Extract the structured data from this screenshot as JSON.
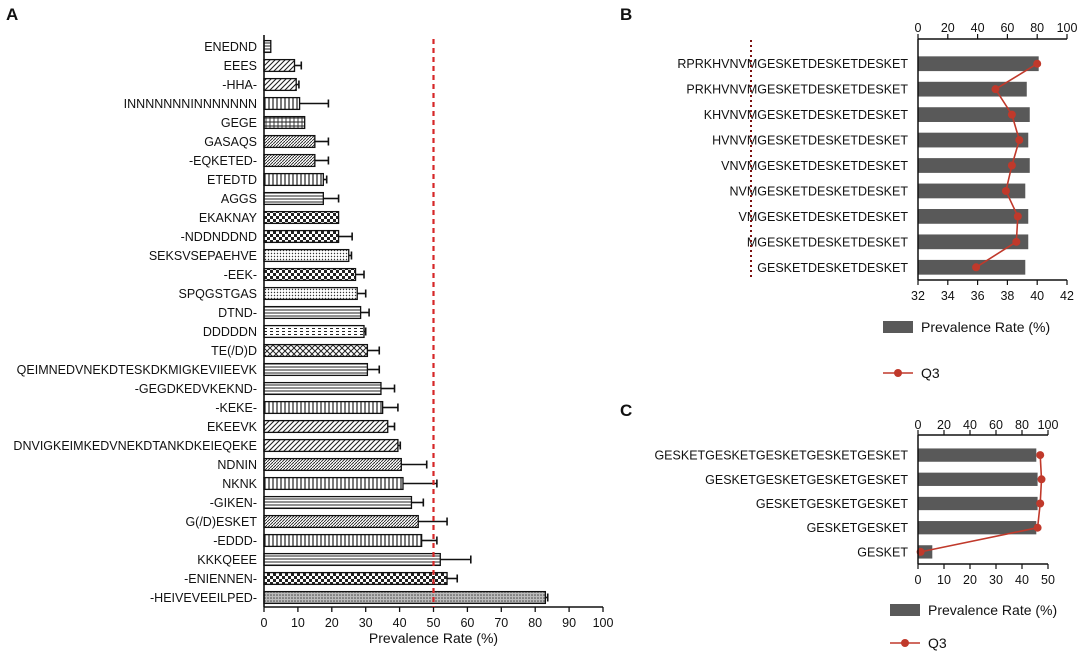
{
  "chart_data": [
    {
      "panel": "A",
      "type": "bar",
      "orientation": "horizontal",
      "xlabel": "Prevalence Rate (%)",
      "xlim": [
        0,
        100
      ],
      "xticks": [
        0,
        10,
        20,
        30,
        40,
        50,
        60,
        70,
        80,
        90,
        100
      ],
      "threshold": 50,
      "categories": [
        "ENEDND",
        "EEES",
        "-HHA-",
        "INNNNNNNINNNNNNN",
        "GEGE",
        "GASAQS",
        "-EQKETED-",
        "ETEDTD",
        "AGGS",
        "EKAKNAY",
        "-NDDNDDND",
        "SEKSVSEPAEHVE",
        "-EEK-",
        "SPQGSTGAS",
        "DTND-",
        "DDDDDN",
        "TE(/D)D",
        "QEIMNEDVNEKDTESKDKMIGKEVIIEEVK",
        "-GEGDKEDVKEKND-",
        "-KEKE-",
        "EKEEVK",
        "DNVIGKEIMKEDVNEKDTANKDKEIEQEKE",
        "NDNIN",
        "NKNK",
        "-GIKEN-",
        "G(/D)ESKET",
        "-EDDD-",
        "KKKQEEE",
        "-ENIENNEN-",
        "-HEIVEVEEILPED-"
      ],
      "values": [
        2,
        9,
        9.5,
        10.5,
        12,
        15,
        15,
        17.5,
        17.5,
        22,
        22,
        25,
        27,
        27.5,
        28.5,
        29.5,
        30.5,
        30.5,
        34.5,
        35,
        36.5,
        39.5,
        40.5,
        41,
        43.5,
        45.5,
        46.5,
        52,
        54,
        83
      ],
      "errors": [
        0,
        2,
        0.8,
        8.5,
        0,
        4,
        4,
        1,
        4.5,
        0,
        4,
        0.8,
        2.5,
        2.5,
        2.5,
        0.5,
        3.5,
        3.5,
        4,
        4.5,
        2,
        0.7,
        7.5,
        10,
        3.5,
        8.5,
        4.5,
        9,
        3,
        0.7
      ]
    },
    {
      "panel": "B",
      "type": "bar",
      "orientation": "horizontal",
      "categories": [
        "RPRKHVNVMGESKETDESKETDESKET",
        "PRKHVNVMGESKETDESKETDESKET",
        "KHVNVMGESKETDESKETDESKET",
        "HVNVMGESKETDESKETDESKET",
        "VNVMGESKETDESKETDESKET",
        "NVMGESKETDESKETDESKET",
        "VMGESKETDESKETDESKET",
        "MGESKETDESKETDESKET",
        "GESKETDESKETDESKET"
      ],
      "series": [
        {
          "name": "Prevalence Rate (%)",
          "axis": "top",
          "values": [
            81,
            73,
            75,
            74,
            75,
            72,
            74,
            74,
            72
          ]
        },
        {
          "name": "Q3",
          "axis": "bottom",
          "values": [
            40,
            37.2,
            38.3,
            38.8,
            38.3,
            37.9,
            38.7,
            38.6,
            35.9
          ]
        }
      ],
      "top_axis": {
        "range": [
          0,
          100
        ],
        "ticks": [
          0,
          20,
          40,
          60,
          80,
          100
        ]
      },
      "bottom_axis": {
        "range": [
          32,
          42
        ],
        "ticks": [
          32,
          34,
          36,
          38,
          40,
          42
        ]
      },
      "legend": [
        "Prevalence Rate (%)",
        "Q3"
      ]
    },
    {
      "panel": "C",
      "type": "bar",
      "orientation": "horizontal",
      "categories": [
        "GESKETGESKETGESKETGESKETGESKET",
        "GESKETGESKETGESKETGESKET",
        "GESKETGESKETGESKET",
        "GESKETGESKET",
        "GESKET"
      ],
      "series": [
        {
          "name": "Prevalence Rate (%)",
          "axis": "bottom",
          "values": [
            45.5,
            46,
            46,
            45.5,
            5.5
          ]
        },
        {
          "name": "Q3",
          "axis": "top",
          "values": [
            94,
            95,
            94,
            92,
            2
          ]
        }
      ],
      "top_axis": {
        "range": [
          0,
          100
        ],
        "ticks": [
          0,
          20,
          40,
          60,
          80,
          100
        ]
      },
      "bottom_axis": {
        "range": [
          0,
          50
        ],
        "ticks": [
          0,
          10,
          20,
          30,
          40,
          50
        ]
      },
      "legend": [
        "Prevalence Rate (%)",
        "Q3"
      ]
    }
  ],
  "colors": {
    "bar_dark": "#595959",
    "q3_red": "#c0392b",
    "threshold_red": "#d62728",
    "maroon_dotted": "#7b1010"
  }
}
